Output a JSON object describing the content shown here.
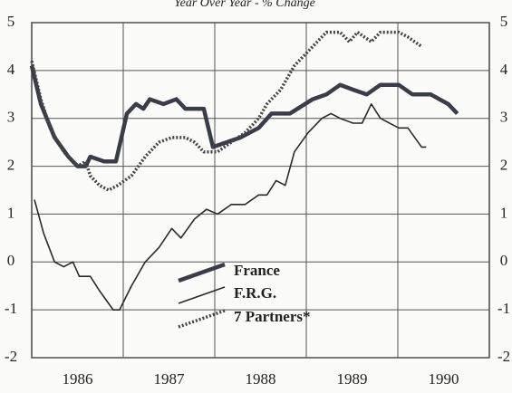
{
  "chart_data": {
    "type": "line",
    "subtitle": "Year Over Year - % Change",
    "xlim": [
      1986,
      1991
    ],
    "xticks": [
      {
        "value": 1986.5,
        "label": "1986"
      },
      {
        "value": 1987.5,
        "label": "1987"
      },
      {
        "value": 1988.5,
        "label": "1988"
      },
      {
        "value": 1989.5,
        "label": "1989"
      },
      {
        "value": 1990.5,
        "label": "1990"
      }
    ],
    "xgrid": [
      1987,
      1988,
      1989,
      1990
    ],
    "ylim": [
      -2,
      5
    ],
    "yticks": [
      -2,
      -1,
      0,
      1,
      2,
      3,
      4,
      5
    ],
    "y2lim": [
      -2,
      5
    ],
    "y2ticks": [
      -2,
      -1,
      0,
      1,
      2,
      3,
      4,
      5
    ],
    "grid": true,
    "legend": "bottom-center",
    "series": [
      {
        "name": "France",
        "color": "#3a3d48",
        "style": "thick",
        "x": [
          1986.0,
          1986.1,
          1986.25,
          1986.4,
          1986.5,
          1986.59,
          1986.64,
          1986.79,
          1986.92,
          1987.04,
          1987.14,
          1987.22,
          1987.29,
          1987.44,
          1987.58,
          1987.68,
          1987.88,
          1987.98,
          1988.13,
          1988.28,
          1988.48,
          1988.62,
          1988.82,
          1989.07,
          1989.22,
          1989.37,
          1989.51,
          1989.66,
          1989.81,
          1990.01,
          1990.16,
          1990.36,
          1990.55,
          1990.65
        ],
        "values": [
          4.1,
          3.3,
          2.6,
          2.2,
          2.0,
          2.0,
          2.2,
          2.1,
          2.1,
          3.1,
          3.3,
          3.2,
          3.4,
          3.3,
          3.4,
          3.2,
          3.2,
          2.4,
          2.5,
          2.6,
          2.8,
          3.1,
          3.1,
          3.4,
          3.5,
          3.7,
          3.6,
          3.5,
          3.7,
          3.7,
          3.5,
          3.5,
          3.3,
          3.1
        ]
      },
      {
        "name": "F.R.G.",
        "color": "#2a2a2a",
        "style": "thin",
        "x": [
          1986.03,
          1986.13,
          1986.25,
          1986.35,
          1986.45,
          1986.52,
          1986.64,
          1986.74,
          1986.89,
          1986.96,
          1987.09,
          1987.24,
          1987.39,
          1987.53,
          1987.63,
          1987.78,
          1987.91,
          1988.03,
          1988.18,
          1988.33,
          1988.48,
          1988.57,
          1988.67,
          1988.77,
          1988.87,
          1989.02,
          1989.17,
          1989.27,
          1989.37,
          1989.51,
          1989.61,
          1989.71,
          1989.81,
          1990.01,
          1990.11,
          1990.26,
          1990.31
        ],
        "values": [
          1.3,
          0.6,
          0.0,
          -0.1,
          0.0,
          -0.3,
          -0.3,
          -0.6,
          -1.0,
          -1.0,
          -0.5,
          0.0,
          0.3,
          0.7,
          0.5,
          0.9,
          1.1,
          1.0,
          1.2,
          1.2,
          1.4,
          1.4,
          1.7,
          1.6,
          2.3,
          2.7,
          3.0,
          3.1,
          3.0,
          2.9,
          2.9,
          3.3,
          3.0,
          2.8,
          2.8,
          2.4,
          2.4
        ]
      },
      {
        "name": "7 Partners*",
        "color": "#444444",
        "style": "dotted",
        "x": [
          1986.0,
          1986.1,
          1986.2,
          1986.35,
          1986.5,
          1986.59,
          1986.64,
          1986.74,
          1986.84,
          1986.94,
          1987.09,
          1987.24,
          1987.39,
          1987.53,
          1987.68,
          1987.78,
          1987.88,
          1988.03,
          1988.18,
          1988.33,
          1988.48,
          1988.57,
          1988.72,
          1988.87,
          1989.07,
          1989.22,
          1989.37,
          1989.47,
          1989.56,
          1989.71,
          1989.81,
          1990.01,
          1990.11,
          1990.26
        ],
        "values": [
          4.2,
          3.4,
          2.8,
          2.3,
          2.0,
          2.1,
          1.8,
          1.6,
          1.5,
          1.6,
          1.8,
          2.2,
          2.5,
          2.6,
          2.6,
          2.5,
          2.3,
          2.3,
          2.5,
          2.7,
          3.0,
          3.3,
          3.6,
          4.1,
          4.5,
          4.8,
          4.8,
          4.6,
          4.8,
          4.6,
          4.8,
          4.8,
          4.7,
          4.5
        ]
      }
    ]
  }
}
